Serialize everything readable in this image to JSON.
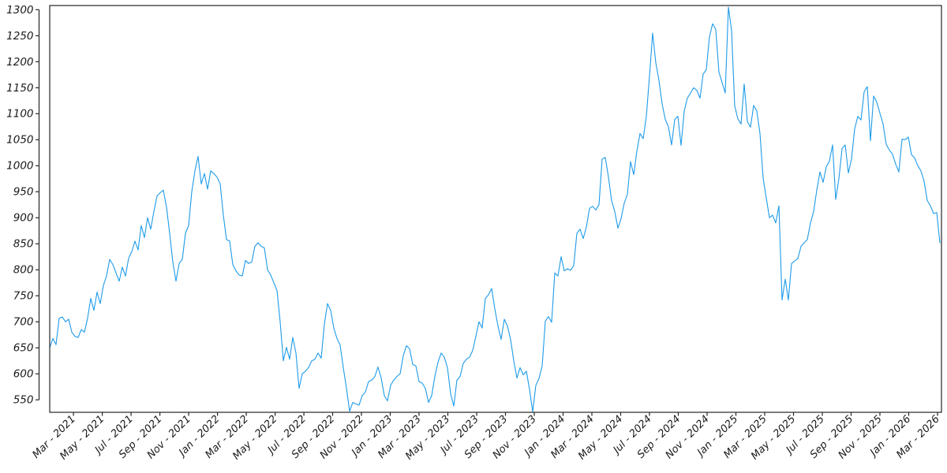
{
  "chart_data": {
    "type": "line",
    "title": "",
    "xlabel": "",
    "ylabel": "",
    "grid": false,
    "legend": null,
    "background_color": "#ffffff",
    "axis_color": "#262626",
    "tick_label_color": "#1a1a1a",
    "tick_label_style": "italic",
    "line_color": "#1e9be9",
    "y_ticks": [
      550,
      600,
      650,
      700,
      750,
      800,
      850,
      900,
      950,
      1000,
      1050,
      1100,
      1150,
      1200,
      1250,
      1300
    ],
    "ylim": [
      526,
      1308
    ],
    "x_tick_labels": [
      "Mar - 2021",
      "May - 2021",
      "Jul - 2021",
      "Sep - 2021",
      "Nov - 2021",
      "Jan - 2022",
      "Mar - 2022",
      "May - 2022",
      "Jul - 2022",
      "Sep - 2022",
      "Nov - 2022",
      "Jan - 2023",
      "Mar - 2023",
      "May - 2023",
      "Jul - 2023",
      "Sep - 2023",
      "Nov - 2023",
      "Jan - 2024",
      "Mar - 2024",
      "May - 2024",
      "Jul - 2024",
      "Sep - 2024",
      "Nov - 2024",
      "Jan - 2025",
      "Mar - 2025",
      "May - 2025",
      "Jul - 2025",
      "Sep - 2025",
      "Nov - 2025",
      "Jan - 2026",
      "Mar - 2026"
    ],
    "x_tick_first_frac": 0.0266,
    "x_tick_step_frac": 0.0323,
    "series": [
      {
        "name": "value",
        "x_span_frac": [
          0.0,
          0.9982
        ],
        "values": [
          650,
          668,
          656,
          707,
          709,
          700,
          705,
          680,
          672,
          670,
          685,
          680,
          707,
          745,
          722,
          757,
          735,
          770,
          788,
          820,
          810,
          794,
          778,
          805,
          788,
          822,
          835,
          855,
          838,
          885,
          862,
          900,
          878,
          912,
          942,
          948,
          953,
          920,
          870,
          815,
          778,
          812,
          820,
          870,
          885,
          950,
          990,
          1018,
          965,
          985,
          955,
          990,
          985,
          978,
          965,
          905,
          858,
          855,
          810,
          798,
          790,
          788,
          818,
          812,
          815,
          845,
          852,
          845,
          842,
          800,
          790,
          775,
          760,
          700,
          625,
          651,
          628,
          670,
          640,
          572,
          600,
          605,
          612,
          625,
          628,
          640,
          630,
          695,
          735,
          722,
          688,
          668,
          655,
          612,
          572,
          528,
          545,
          542,
          540,
          558,
          565,
          585,
          588,
          595,
          613,
          592,
          558,
          548,
          578,
          588,
          595,
          600,
          635,
          654,
          648,
          618,
          615,
          585,
          582,
          572,
          545,
          558,
          595,
          622,
          640,
          632,
          612,
          562,
          538,
          588,
          595,
          620,
          628,
          632,
          645,
          672,
          700,
          688,
          745,
          752,
          764,
          725,
          692,
          666,
          705,
          692,
          666,
          625,
          592,
          612,
          598,
          605,
          570,
          527,
          578,
          591,
          615,
          701,
          710,
          699,
          794,
          788,
          825,
          798,
          802,
          799,
          808,
          870,
          878,
          860,
          882,
          918,
          922,
          915,
          925,
          1013,
          1016,
          978,
          933,
          912,
          880,
          898,
          928,
          945,
          1008,
          983,
          1028,
          1062,
          1052,
          1095,
          1172,
          1255,
          1198,
          1164,
          1119,
          1089,
          1075,
          1040,
          1089,
          1095,
          1039,
          1105,
          1130,
          1140,
          1150,
          1145,
          1130,
          1176,
          1185,
          1248,
          1273,
          1262,
          1180,
          1160,
          1140,
          1305,
          1260,
          1115,
          1090,
          1080,
          1157,
          1085,
          1074,
          1116,
          1105,
          1062,
          976,
          938,
          900,
          905,
          890,
          923,
          742,
          782,
          742,
          812,
          817,
          822,
          845,
          852,
          858,
          890,
          912,
          953,
          988,
          968,
          998,
          1009,
          1040,
          935,
          975,
          1033,
          1040,
          986,
          1013,
          1071,
          1095,
          1088,
          1142,
          1152,
          1048,
          1134,
          1122,
          1101,
          1080,
          1041,
          1030,
          1022,
          1003,
          988,
          1051,
          1050,
          1055,
          1021,
          1015,
          1000,
          990,
          970,
          933,
          923,
          908,
          910,
          852
        ]
      }
    ]
  }
}
